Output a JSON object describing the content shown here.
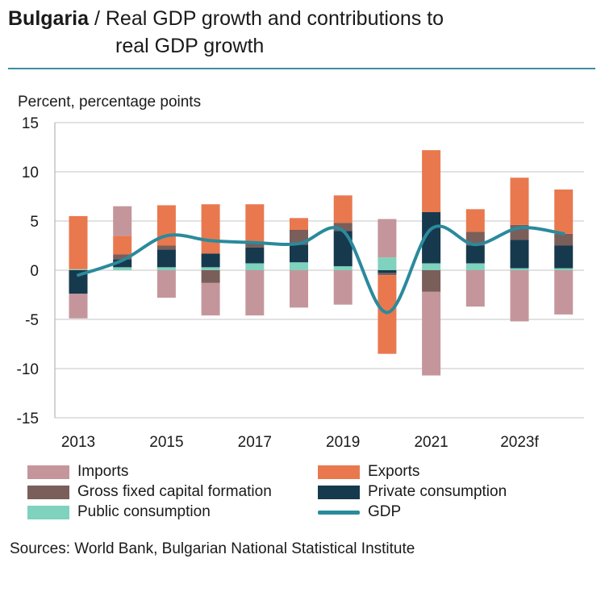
{
  "header": {
    "country": "Bulgaria",
    "separator": " / ",
    "title_line1": "Real GDP growth and contributions to",
    "title_line2": "real GDP growth"
  },
  "unit_label": "Percent, percentage points",
  "source": "Sources: World Bank, Bulgarian National Statistical Institute",
  "colors": {
    "imports": "#c4969b",
    "exports": "#e9784f",
    "gfcf": "#7a5e5a",
    "private": "#17394d",
    "public": "#7fd2bd",
    "gdp": "#2a8a9c",
    "grid": "#d9d9d9",
    "rule": "#3a8f9e"
  },
  "chart_data": {
    "type": "bar",
    "stacked": true,
    "years": [
      "2013",
      "2014",
      "2015",
      "2016",
      "2017",
      "2018",
      "2019",
      "2020",
      "2021",
      "2022",
      "2023f",
      "2024f"
    ],
    "x_tick_labels": [
      "2013",
      "2015",
      "2017",
      "2019",
      "2021",
      "2023f"
    ],
    "ylim": [
      -15,
      15
    ],
    "yticks": [
      15,
      10,
      5,
      0,
      -5,
      -10,
      -15
    ],
    "grid": true,
    "legend": [
      {
        "key": "imports",
        "label": "Imports",
        "kind": "bar"
      },
      {
        "key": "exports",
        "label": "Exports",
        "kind": "bar"
      },
      {
        "key": "gfcf",
        "label": "Gross fixed capital formation",
        "kind": "bar"
      },
      {
        "key": "private",
        "label": "Private consumption",
        "kind": "bar"
      },
      {
        "key": "public",
        "label": "Public consumption",
        "kind": "bar"
      },
      {
        "key": "gdp",
        "label": "GDP",
        "kind": "line"
      }
    ],
    "series": [
      {
        "name": "Public consumption",
        "key": "public",
        "values": [
          0.1,
          0.3,
          0.3,
          0.3,
          0.7,
          0.8,
          0.4,
          1.3,
          0.7,
          0.7,
          0.2,
          0.2
        ]
      },
      {
        "name": "Private consumption",
        "key": "private",
        "values": [
          -2.4,
          0.8,
          1.8,
          1.4,
          1.6,
          1.8,
          3.6,
          -0.3,
          5.2,
          1.8,
          2.9,
          2.3
        ]
      },
      {
        "name": "Gross fixed capital formation",
        "key": "gfcf",
        "values": [
          0.0,
          0.5,
          0.4,
          -1.3,
          0.4,
          1.5,
          0.8,
          -0.2,
          -2.2,
          1.4,
          1.5,
          1.2
        ]
      },
      {
        "name": "Exports",
        "key": "exports",
        "values": [
          5.4,
          1.9,
          4.1,
          5.0,
          4.0,
          1.2,
          2.8,
          -8.0,
          6.3,
          2.3,
          4.8,
          4.5
        ]
      },
      {
        "name": "Imports",
        "key": "imports",
        "values": [
          -2.5,
          3.0,
          -2.8,
          -3.3,
          -4.6,
          -3.8,
          -3.5,
          3.9,
          -8.5,
          -3.7,
          -5.2,
          -4.5
        ]
      }
    ],
    "gdp": {
      "name": "GDP",
      "key": "gdp",
      "values": [
        -0.5,
        1.0,
        3.5,
        3.0,
        2.8,
        2.7,
        4.0,
        -4.3,
        4.2,
        2.6,
        4.3,
        3.7
      ]
    }
  }
}
